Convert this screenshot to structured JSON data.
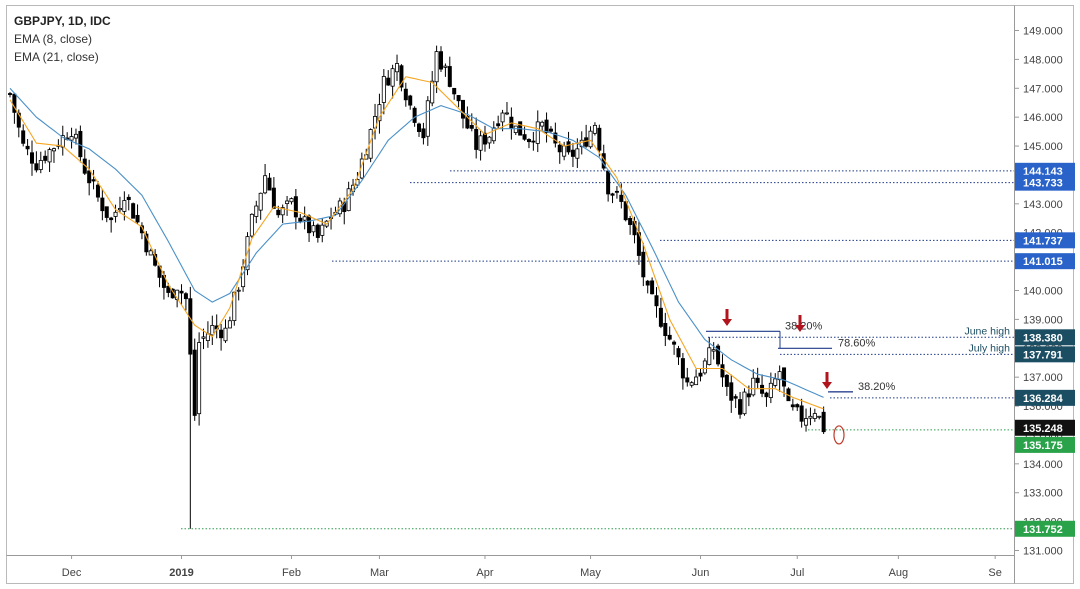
{
  "legend": {
    "symbol": "GBPJPY, 1D, IDC",
    "ema_fast": "EMA (8, close)",
    "ema_slow": "EMA (21, close)"
  },
  "colors": {
    "up_candle": "#ffffff",
    "down_candle": "#000000",
    "ema_fast": "#f5a623",
    "ema_slow": "#4a90c8",
    "level_line": "#1f3a8a",
    "support_line": "#2e9e4f",
    "arrow": "#b0141c",
    "tag_blue": "#2962c8",
    "tag_dark": "#1c4e63",
    "tag_black": "#111111",
    "tag_green": "#2aa24a",
    "circle": "#c0392b"
  },
  "chart_data": {
    "type": "candlestick",
    "title": "GBPJPY, 1D, IDC",
    "xlabel": "",
    "ylabel": "",
    "ylim": [
      130.7,
      149.6
    ],
    "x_ticks": [
      "Dec",
      "2019",
      "Feb",
      "Mar",
      "Apr",
      "May",
      "Jun",
      "Jul",
      "Aug",
      "Se"
    ],
    "y_ticks": [
      "131.000",
      "132.000",
      "133.000",
      "134.000",
      "135.000",
      "136.000",
      "137.000",
      "138.000",
      "139.000",
      "140.000",
      "141.000",
      "142.000",
      "143.000",
      "144.000",
      "145.000",
      "146.000",
      "147.000",
      "148.000",
      "149.000"
    ],
    "series": [
      {
        "name": "EMA (8, close)"
      },
      {
        "name": "EMA (21, close)"
      }
    ],
    "close_path": [
      [
        0,
        146.8
      ],
      [
        3,
        145.0
      ],
      [
        6,
        144.4
      ],
      [
        10,
        145.0
      ],
      [
        14,
        145.6
      ],
      [
        17,
        144.2
      ],
      [
        20,
        143.2
      ],
      [
        23,
        142.4
      ],
      [
        26,
        143.4
      ],
      [
        30,
        142.0
      ],
      [
        33,
        140.8
      ],
      [
        36,
        139.8
      ],
      [
        38,
        140.2
      ],
      [
        40,
        139.7
      ],
      [
        42,
        135.7
      ],
      [
        43,
        138.2
      ],
      [
        46,
        138.7
      ],
      [
        49,
        138.6
      ],
      [
        52,
        140.2
      ],
      [
        55,
        142.4
      ],
      [
        58,
        144.0
      ],
      [
        61,
        142.6
      ],
      [
        64,
        143.0
      ],
      [
        67,
        142.3
      ],
      [
        70,
        141.8
      ],
      [
        73,
        142.6
      ],
      [
        76,
        143.0
      ],
      [
        79,
        144.0
      ],
      [
        82,
        145.5
      ],
      [
        85,
        147.2
      ],
      [
        88,
        147.8
      ],
      [
        91,
        146.4
      ],
      [
        94,
        145.4
      ],
      [
        97,
        148.2
      ],
      [
        100,
        147.3
      ],
      [
        103,
        146.0
      ],
      [
        106,
        145.0
      ],
      [
        109,
        145.4
      ],
      [
        112,
        146.3
      ],
      [
        115,
        145.6
      ],
      [
        118,
        145.3
      ],
      [
        121,
        145.7
      ],
      [
        124,
        145.0
      ],
      [
        127,
        144.6
      ],
      [
        130,
        145.0
      ],
      [
        133,
        145.8
      ],
      [
        136,
        143.6
      ],
      [
        139,
        143.0
      ],
      [
        142,
        141.8
      ],
      [
        145,
        139.9
      ],
      [
        148,
        139.0
      ],
      [
        151,
        138.0
      ],
      [
        154,
        136.8
      ],
      [
        157,
        137.2
      ],
      [
        160,
        138.0
      ],
      [
        163,
        136.5
      ],
      [
        166,
        136.0
      ],
      [
        169,
        136.8
      ],
      [
        172,
        136.2
      ],
      [
        175,
        137.2
      ],
      [
        177,
        135.9
      ],
      [
        180,
        135.6
      ],
      [
        183,
        135.9
      ],
      [
        185,
        135.25
      ]
    ],
    "ema_fast_path": [
      [
        0,
        146.6
      ],
      [
        6,
        145.1
      ],
      [
        12,
        145.0
      ],
      [
        18,
        144.2
      ],
      [
        24,
        142.8
      ],
      [
        30,
        142.2
      ],
      [
        36,
        140.2
      ],
      [
        42,
        138.8
      ],
      [
        46,
        138.4
      ],
      [
        50,
        139.4
      ],
      [
        55,
        141.8
      ],
      [
        60,
        142.9
      ],
      [
        66,
        142.7
      ],
      [
        72,
        142.3
      ],
      [
        78,
        143.5
      ],
      [
        84,
        146.0
      ],
      [
        90,
        147.4
      ],
      [
        96,
        147.2
      ],
      [
        102,
        146.3
      ],
      [
        108,
        145.4
      ],
      [
        114,
        145.8
      ],
      [
        120,
        145.6
      ],
      [
        126,
        145.0
      ],
      [
        132,
        145.2
      ],
      [
        138,
        143.9
      ],
      [
        144,
        141.6
      ],
      [
        150,
        139.0
      ],
      [
        156,
        137.3
      ],
      [
        162,
        137.3
      ],
      [
        168,
        136.6
      ],
      [
        174,
        136.6
      ],
      [
        178,
        136.3
      ],
      [
        185,
        135.9
      ]
    ],
    "ema_slow_path": [
      [
        0,
        147.0
      ],
      [
        6,
        146.0
      ],
      [
        12,
        145.3
      ],
      [
        18,
        144.9
      ],
      [
        24,
        144.2
      ],
      [
        30,
        143.3
      ],
      [
        36,
        141.7
      ],
      [
        42,
        140.0
      ],
      [
        46,
        139.6
      ],
      [
        50,
        139.9
      ],
      [
        56,
        141.3
      ],
      [
        62,
        142.3
      ],
      [
        68,
        142.4
      ],
      [
        74,
        142.6
      ],
      [
        80,
        143.8
      ],
      [
        86,
        145.2
      ],
      [
        92,
        146.0
      ],
      [
        98,
        146.4
      ],
      [
        104,
        146.1
      ],
      [
        110,
        145.6
      ],
      [
        116,
        145.6
      ],
      [
        122,
        145.5
      ],
      [
        128,
        145.2
      ],
      [
        134,
        144.6
      ],
      [
        140,
        143.3
      ],
      [
        146,
        141.5
      ],
      [
        152,
        139.6
      ],
      [
        158,
        138.3
      ],
      [
        164,
        137.6
      ],
      [
        170,
        137.1
      ],
      [
        176,
        136.9
      ],
      [
        182,
        136.5
      ],
      [
        185,
        136.3
      ]
    ],
    "levels": [
      {
        "value": 144.143,
        "label": "144.143",
        "tag": "blue"
      },
      {
        "value": 143.733,
        "label": "143.733",
        "tag": "blue"
      },
      {
        "value": 141.737,
        "label": "141.737",
        "tag": "blue"
      },
      {
        "value": 141.015,
        "label": "141.015",
        "tag": "blue"
      },
      {
        "value": 138.38,
        "label": "138.380",
        "tag": "dark",
        "note": "June high"
      },
      {
        "value": 137.791,
        "label": "137.791",
        "tag": "dark",
        "note": "July high"
      },
      {
        "value": 136.284,
        "label": "136.284",
        "tag": "dark"
      },
      {
        "value": 135.248,
        "label": "135.248",
        "tag": "black"
      },
      {
        "value": 135.175,
        "label": "135.175",
        "tag": "green"
      },
      {
        "value": 131.752,
        "label": "131.752",
        "tag": "green"
      }
    ],
    "fib_annotations": [
      "38.20%",
      "78.60%",
      "38.20%"
    ],
    "last_close": 135.248,
    "grid": false
  }
}
